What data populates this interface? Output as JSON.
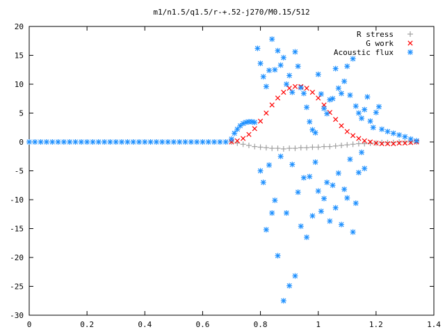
{
  "chart_data": {
    "type": "scatter",
    "title": "m1/n1.5/q1.5/r-+.52-j270/M0.15/512",
    "xlabel": "",
    "ylabel": "",
    "xlim": [
      0,
      1.4
    ],
    "ylim": [
      -30,
      20
    ],
    "x_ticks": [
      "0",
      "0.2",
      "0.4",
      "0.6",
      "0.8",
      "1",
      "1.2",
      "1.4"
    ],
    "y_ticks": [
      "20",
      "15",
      "10",
      "5",
      "0",
      "-5",
      "-10",
      "-15",
      "-20",
      "-25",
      "-30"
    ],
    "grid": false,
    "legend_position": "top-right",
    "series": [
      {
        "name": "R stress",
        "marker": "+",
        "color": "#a0a0a0",
        "x": [
          0.7,
          0.72,
          0.74,
          0.76,
          0.78,
          0.8,
          0.82,
          0.84,
          0.86,
          0.88,
          0.9,
          0.92,
          0.94,
          0.96,
          0.98,
          1.0,
          1.02,
          1.04,
          1.06,
          1.08,
          1.1,
          1.12,
          1.14,
          1.16,
          1.18,
          1.2,
          1.22,
          1.24,
          1.26,
          1.28,
          1.3,
          1.32,
          1.34
        ],
        "y": [
          0.0,
          -0.2,
          -0.4,
          -0.6,
          -0.8,
          -0.9,
          -1.0,
          -1.1,
          -1.1,
          -1.2,
          -1.1,
          -1.1,
          -1.0,
          -1.0,
          -0.9,
          -0.9,
          -0.8,
          -0.8,
          -0.7,
          -0.6,
          -0.5,
          -0.4,
          -0.3,
          -0.3,
          -0.2,
          -0.2,
          -0.1,
          -0.1,
          -0.1,
          0.0,
          0.0,
          0.0,
          0.0
        ]
      },
      {
        "name": "G work",
        "marker": "x",
        "color": "#ff0000",
        "x": [
          0.7,
          0.72,
          0.74,
          0.76,
          0.78,
          0.8,
          0.82,
          0.84,
          0.86,
          0.88,
          0.9,
          0.92,
          0.94,
          0.96,
          0.98,
          1.0,
          1.02,
          1.04,
          1.06,
          1.08,
          1.1,
          1.12,
          1.14,
          1.16,
          1.18,
          1.2,
          1.22,
          1.24,
          1.26,
          1.28,
          1.3,
          1.32,
          1.34
        ],
        "y": [
          0.0,
          0.2,
          0.6,
          1.3,
          2.3,
          3.6,
          5.0,
          6.4,
          7.6,
          8.6,
          9.3,
          9.6,
          9.6,
          9.3,
          8.6,
          7.6,
          6.4,
          5.1,
          3.9,
          2.8,
          1.8,
          1.1,
          0.6,
          0.2,
          0.0,
          -0.2,
          -0.3,
          -0.3,
          -0.3,
          -0.2,
          -0.2,
          -0.1,
          0.0
        ]
      },
      {
        "name": "Acoustic flux",
        "marker": "*",
        "color": "#1e90ff",
        "x": [
          0.0,
          0.02,
          0.04,
          0.06,
          0.08,
          0.1,
          0.12,
          0.14,
          0.16,
          0.18,
          0.2,
          0.22,
          0.24,
          0.26,
          0.28,
          0.3,
          0.32,
          0.34,
          0.36,
          0.38,
          0.4,
          0.42,
          0.44,
          0.46,
          0.48,
          0.5,
          0.52,
          0.54,
          0.56,
          0.58,
          0.6,
          0.62,
          0.64,
          0.66,
          0.68,
          0.7,
          0.71,
          0.72,
          0.73,
          0.74,
          0.75,
          0.76,
          0.77,
          0.78,
          1.22,
          1.24,
          1.26,
          1.28,
          1.3,
          1.32,
          1.34,
          0.79,
          0.8,
          0.81,
          0.82,
          0.83,
          0.84,
          0.85,
          0.86,
          0.87,
          0.88,
          0.89,
          0.9,
          0.91,
          0.92,
          0.93,
          0.94,
          0.95,
          0.96,
          0.97,
          0.98,
          0.99,
          1.0,
          1.01,
          1.02,
          1.03,
          1.04,
          1.05,
          1.06,
          1.07,
          1.08,
          1.09,
          1.1,
          1.11,
          1.12,
          1.13,
          1.14,
          1.15,
          1.16,
          1.17,
          1.18,
          1.19,
          1.2,
          1.21,
          0.8,
          0.82,
          0.84,
          0.86,
          0.88,
          0.9,
          0.92,
          0.94,
          0.96,
          0.98,
          1.0,
          1.02,
          1.04,
          1.06,
          1.08,
          1.1,
          1.12,
          1.14,
          1.16,
          0.81,
          0.85,
          0.89,
          0.93,
          0.97,
          1.01,
          1.05,
          1.09,
          1.13,
          0.83,
          0.87,
          0.91,
          0.95,
          0.99,
          1.03,
          1.07,
          1.11,
          1.15
        ],
        "y": [
          0,
          0,
          0,
          0,
          0,
          0,
          0,
          0,
          0,
          0,
          0,
          0,
          0,
          0,
          0,
          0,
          0,
          0,
          0,
          0,
          0,
          0,
          0,
          0,
          0,
          0,
          0,
          0,
          0,
          0,
          0,
          0,
          0,
          0,
          0,
          0.5,
          1.5,
          2.2,
          2.8,
          3.2,
          3.4,
          3.5,
          3.5,
          3.4,
          2.2,
          1.8,
          1.5,
          1.2,
          0.9,
          0.5,
          0.2,
          16.2,
          13.6,
          11.3,
          9.6,
          12.4,
          17.8,
          12.5,
          15.8,
          13.3,
          14.6,
          10.0,
          11.5,
          8.6,
          15.6,
          13.1,
          9.4,
          8.4,
          6.0,
          3.5,
          2.1,
          1.6,
          11.7,
          8.3,
          5.8,
          4.9,
          7.3,
          7.5,
          12.7,
          9.3,
          8.4,
          10.5,
          13.1,
          8.1,
          14.4,
          6.2,
          5.0,
          4.1,
          5.6,
          7.8,
          3.6,
          2.5,
          5.1,
          6.1,
          -5.0,
          -15.2,
          -12.3,
          -19.7,
          -27.5,
          -24.9,
          -23.2,
          -14.6,
          -16.5,
          -12.8,
          -8.5,
          -9.8,
          -13.7,
          -11.4,
          -14.3,
          -9.7,
          -15.6,
          -5.3,
          -4.6,
          -7.0,
          -10.1,
          -12.3,
          -8.7,
          -6.0,
          -12.0,
          -7.5,
          -8.2,
          -10.6,
          -4.0,
          -2.5,
          -3.9,
          -6.2,
          -3.5,
          -7.0,
          -5.4,
          -3.0,
          -1.8
        ]
      }
    ]
  }
}
